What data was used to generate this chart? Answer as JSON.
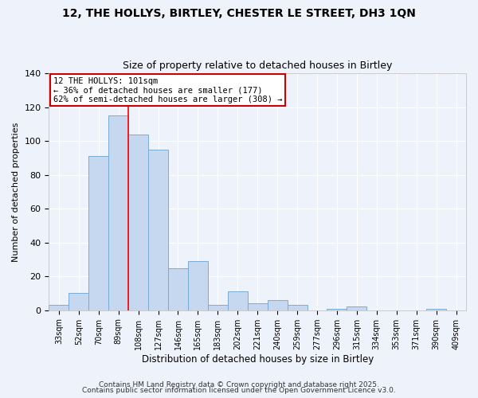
{
  "title": "12, THE HOLLYS, BIRTLEY, CHESTER LE STREET, DH3 1QN",
  "subtitle": "Size of property relative to detached houses in Birtley",
  "xlabel": "Distribution of detached houses by size in Birtley",
  "ylabel": "Number of detached properties",
  "footer_line1": "Contains HM Land Registry data © Crown copyright and database right 2025.",
  "footer_line2": "Contains public sector information licensed under the Open Government Licence v3.0.",
  "bar_labels": [
    "33sqm",
    "52sqm",
    "70sqm",
    "89sqm",
    "108sqm",
    "127sqm",
    "146sqm",
    "165sqm",
    "183sqm",
    "202sqm",
    "221sqm",
    "240sqm",
    "259sqm",
    "277sqm",
    "296sqm",
    "315sqm",
    "334sqm",
    "353sqm",
    "371sqm",
    "390sqm",
    "409sqm"
  ],
  "bar_values": [
    3,
    10,
    91,
    115,
    104,
    95,
    25,
    29,
    3,
    11,
    4,
    6,
    3,
    0,
    1,
    2,
    0,
    0,
    0,
    1,
    0
  ],
  "bar_color": "#c5d8f0",
  "bar_edge_color": "#7aadd4",
  "background_color": "#eef2fb",
  "grid_color": "#ffffff",
  "red_line_index": 4,
  "annotation_title": "12 THE HOLLYS: 101sqm",
  "annotation_line2": "← 36% of detached houses are smaller (177)",
  "annotation_line3": "62% of semi-detached houses are larger (308) →",
  "annotation_box_facecolor": "#ffffff",
  "annotation_box_edgecolor": "#cc0000",
  "ylim_max": 140,
  "yticks": [
    0,
    20,
    40,
    60,
    80,
    100,
    120,
    140
  ]
}
